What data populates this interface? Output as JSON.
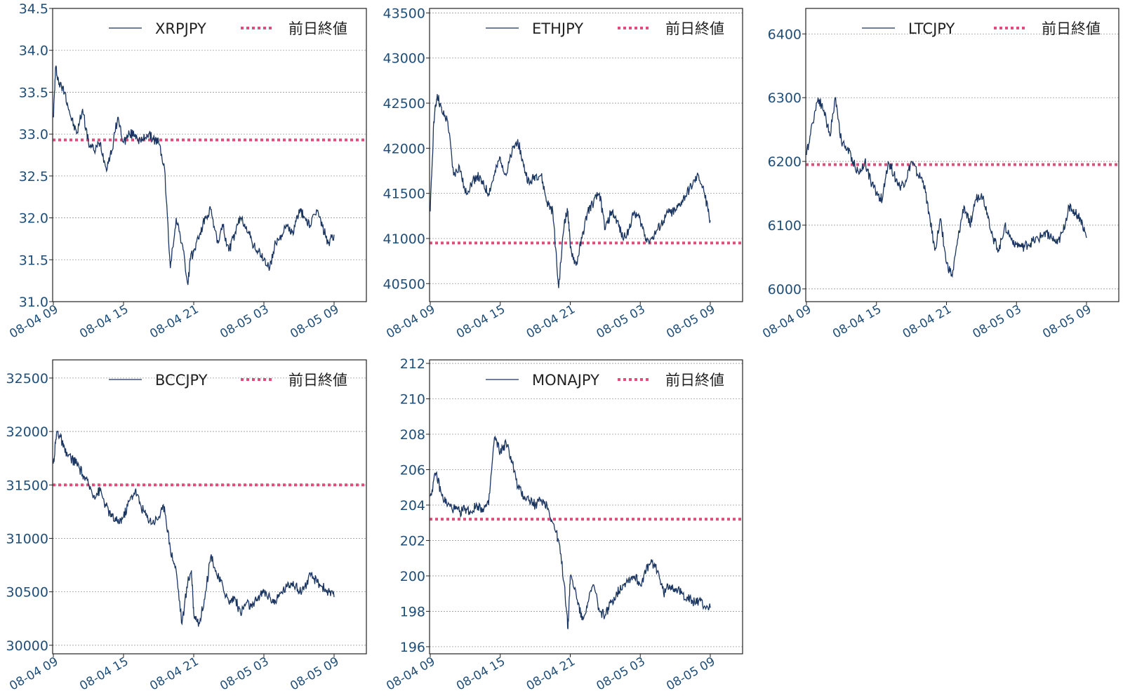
{
  "colors": {
    "price_line": "#1a3560",
    "prev_close": "#d9507a",
    "axis": "#222222",
    "grid": "#9a9a9a",
    "tick_text": "#1f4e79"
  },
  "legend": {
    "prev_close_label": "前日終値"
  },
  "x_axis": {
    "range": [
      "08-04 09",
      "08-05 09"
    ],
    "tick_labels": [
      "08-04 09",
      "08-04 15",
      "08-04 21",
      "08-05 03",
      "08-05 09"
    ]
  },
  "chart_data": [
    {
      "type": "line",
      "series_name": "XRPJPY",
      "prev_close": 32.93,
      "ylim": [
        31.0,
        34.5
      ],
      "yticks": [
        31.0,
        31.5,
        32.0,
        32.5,
        33.0,
        33.5,
        34.0,
        34.5
      ],
      "ytick_decimals": 1,
      "x": [
        0,
        0.2,
        0.5,
        1,
        1.5,
        2,
        2.5,
        3,
        3.5,
        4,
        4.5,
        5,
        5.5,
        6,
        6.5,
        7,
        7.5,
        8,
        8.5,
        9,
        9.5,
        10,
        10.5,
        11,
        11.5,
        11.7,
        12,
        12.5,
        13,
        13.5,
        14,
        14.5,
        15,
        15.5,
        16,
        16.5,
        17,
        17.5,
        18,
        18.5,
        19,
        19.5,
        20,
        20.5,
        21,
        21.5,
        22,
        22.5,
        23,
        23.5,
        24
      ],
      "values": [
        33.2,
        33.8,
        33.6,
        33.5,
        33.2,
        33.0,
        33.3,
        32.9,
        32.8,
        32.9,
        32.6,
        32.8,
        33.2,
        32.9,
        33.0,
        33.0,
        32.9,
        33.0,
        32.95,
        32.9,
        32.6,
        31.4,
        32.0,
        31.7,
        31.2,
        31.5,
        31.6,
        31.8,
        32.0,
        32.1,
        31.7,
        31.9,
        31.6,
        31.8,
        32.0,
        31.9,
        31.7,
        31.6,
        31.5,
        31.4,
        31.7,
        31.8,
        31.9,
        31.8,
        32.1,
        32.0,
        31.9,
        32.1,
        31.9,
        31.7,
        31.8
      ]
    },
    {
      "type": "line",
      "series_name": "ETHJPY",
      "prev_close": 40950,
      "ylim": [
        40300,
        43550
      ],
      "yticks": [
        40500,
        41000,
        41500,
        42000,
        42500,
        43000,
        43500
      ],
      "ytick_decimals": 0,
      "x": [
        0,
        0.3,
        0.6,
        1,
        1.5,
        2,
        2.5,
        3,
        3.5,
        4,
        4.5,
        5,
        5.5,
        6,
        6.5,
        7,
        7.5,
        8,
        8.5,
        9,
        9.5,
        10,
        10.5,
        11,
        11.5,
        11.8,
        12,
        12.5,
        13,
        13.5,
        14,
        14.5,
        15,
        15.5,
        16,
        16.5,
        17,
        17.5,
        18,
        18.5,
        19,
        19.5,
        20,
        20.5,
        21,
        21.5,
        22,
        22.5,
        23,
        23.5,
        24
      ],
      "values": [
        41300,
        42300,
        42600,
        42400,
        42300,
        41700,
        41800,
        41500,
        41600,
        41700,
        41600,
        41500,
        41700,
        41900,
        41700,
        41950,
        42100,
        41800,
        41600,
        41700,
        41700,
        41400,
        41300,
        40450,
        41200,
        41300,
        40900,
        40700,
        41000,
        41300,
        41400,
        41500,
        41100,
        41300,
        41200,
        41000,
        41100,
        41300,
        41200,
        41000,
        41000,
        41100,
        41200,
        41300,
        41300,
        41400,
        41500,
        41600,
        41700,
        41500,
        41200
      ]
    },
    {
      "type": "line",
      "series_name": "LTCJPY",
      "prev_close": 6195,
      "ylim": [
        5980,
        6440
      ],
      "yticks": [
        6000,
        6100,
        6200,
        6300,
        6400
      ],
      "ytick_decimals": 0,
      "x": [
        0,
        0.5,
        1,
        1.5,
        2,
        2.5,
        3,
        3.5,
        4,
        4.5,
        5,
        5.5,
        6,
        6.5,
        7,
        7.5,
        8,
        8.5,
        9,
        9.5,
        10,
        10.5,
        11,
        11.5,
        12,
        12.5,
        13,
        13.5,
        14,
        14.5,
        15,
        15.5,
        16,
        16.5,
        17,
        17.5,
        18,
        18.5,
        19,
        19.5,
        20,
        20.5,
        21,
        21.5,
        22,
        22.5,
        23,
        23.5,
        24
      ],
      "values": [
        6210,
        6260,
        6300,
        6280,
        6240,
        6300,
        6230,
        6220,
        6200,
        6180,
        6200,
        6170,
        6150,
        6140,
        6200,
        6180,
        6160,
        6170,
        6200,
        6180,
        6170,
        6120,
        6060,
        6110,
        6040,
        6020,
        6080,
        6130,
        6100,
        6140,
        6150,
        6120,
        6080,
        6060,
        6100,
        6080,
        6070,
        6065,
        6070,
        6075,
        6080,
        6090,
        6080,
        6070,
        6090,
        6130,
        6120,
        6110,
        6080
      ]
    },
    {
      "type": "line",
      "series_name": "BCCJPY",
      "prev_close": 31500,
      "ylim": [
        29920,
        32670
      ],
      "yticks": [
        30000,
        30500,
        31000,
        31500,
        32000,
        32500
      ],
      "ytick_decimals": 0,
      "x": [
        0,
        0.3,
        0.6,
        1,
        1.5,
        2,
        2.5,
        3,
        3.5,
        4,
        4.5,
        5,
        5.5,
        6,
        6.5,
        7,
        7.5,
        8,
        8.5,
        9,
        9.5,
        10,
        10.5,
        11,
        11.5,
        11.8,
        12,
        12.5,
        13,
        13.5,
        14,
        14.5,
        15,
        15.5,
        16,
        16.5,
        17,
        17.5,
        18,
        18.5,
        19,
        19.5,
        20,
        20.5,
        21,
        21.5,
        22,
        22.5,
        23,
        23.5,
        24
      ],
      "values": [
        31700,
        32000,
        31950,
        31800,
        31750,
        31700,
        31600,
        31500,
        31400,
        31450,
        31300,
        31200,
        31150,
        31200,
        31350,
        31450,
        31300,
        31200,
        31150,
        31200,
        31300,
        30900,
        30700,
        30200,
        30600,
        30700,
        30300,
        30200,
        30500,
        30850,
        30650,
        30550,
        30400,
        30450,
        30300,
        30400,
        30350,
        30450,
        30500,
        30450,
        30400,
        30500,
        30550,
        30600,
        30500,
        30550,
        30650,
        30600,
        30550,
        30500,
        30450
      ]
    },
    {
      "type": "line",
      "series_name": "MONAJPY",
      "prev_close": 203.2,
      "ylim": [
        195.6,
        212.2
      ],
      "yticks": [
        196,
        198,
        200,
        202,
        204,
        206,
        208,
        210,
        212
      ],
      "ytick_decimals": 0,
      "x": [
        0,
        0.5,
        1,
        1.5,
        2,
        2.5,
        3,
        3.5,
        4,
        4.5,
        5,
        5.5,
        6,
        6.5,
        7,
        7.5,
        8,
        8.5,
        9,
        9.5,
        10,
        10.5,
        11,
        11.5,
        11.8,
        12,
        12.5,
        13,
        13.5,
        14,
        14.5,
        15,
        15.5,
        16,
        16.5,
        17,
        17.5,
        18,
        18.5,
        19,
        19.5,
        20,
        20.5,
        21,
        21.5,
        22,
        22.5,
        23,
        23.5,
        24
      ],
      "values": [
        204.5,
        205.8,
        204.5,
        204.0,
        203.8,
        203.6,
        203.8,
        203.6,
        204.0,
        203.8,
        204.0,
        207.8,
        207.0,
        207.5,
        206.5,
        205.0,
        204.5,
        204.3,
        204.0,
        204.3,
        204.0,
        203.0,
        202.0,
        199.5,
        197.0,
        200.0,
        199.0,
        197.5,
        198.5,
        199.5,
        198.0,
        197.8,
        198.5,
        199.0,
        199.5,
        199.8,
        200.0,
        199.5,
        200.3,
        200.8,
        200.3,
        199.0,
        199.5,
        199.3,
        199.0,
        198.8,
        198.5,
        198.6,
        198.3,
        198.2
      ]
    }
  ]
}
